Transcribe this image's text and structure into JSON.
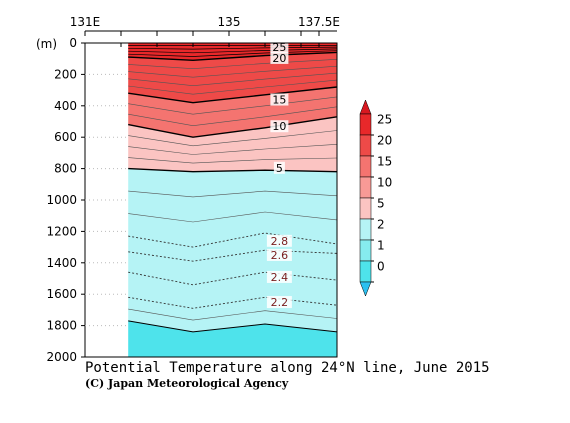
{
  "chart_data": {
    "type": "heatmap",
    "title": "Potential Temperature along 24°N line, June 2015",
    "credit": "(C) Japan Meteorological Agency",
    "ylabel": "(m)",
    "x_tick_labels": [
      "131E",
      "135",
      "137.5E"
    ],
    "x_ticks": [
      131,
      132,
      133,
      134,
      135,
      136,
      137,
      137.5
    ],
    "xlim": [
      131,
      138
    ],
    "data_x_range": [
      132.2,
      138
    ],
    "y_ticks": [
      0,
      200,
      400,
      600,
      800,
      1000,
      1200,
      1400,
      1600,
      1800,
      2000
    ],
    "ylim": [
      0,
      2000
    ],
    "sections": [
      {
        "x": 132.2,
        "depths": {
          "25": 15,
          "20": 90,
          "15": 320,
          "10": 520,
          "5": 800,
          "2.8": 1230,
          "2.6": 1330,
          "2.4": 1460,
          "2.2": 1620,
          "2": 1770
        }
      },
      {
        "x": 134.0,
        "depths": {
          "25": 15,
          "20": 110,
          "15": 380,
          "10": 600,
          "5": 820,
          "2.8": 1300,
          "2.6": 1390,
          "2.4": 1540,
          "2.2": 1690,
          "2": 1840
        }
      },
      {
        "x": 136.0,
        "depths": {
          "25": 15,
          "20": 80,
          "15": 330,
          "10": 540,
          "5": 810,
          "2.8": 1210,
          "2.6": 1320,
          "2.4": 1460,
          "2.2": 1620,
          "2": 1790
        }
      },
      {
        "x": 138.0,
        "depths": {
          "25": 15,
          "20": 60,
          "15": 280,
          "10": 470,
          "5": 820,
          "2.8": 1280,
          "2.6": 1340,
          "2.4": 1510,
          "2.2": 1670,
          "2": 1840
        }
      }
    ],
    "contour_labels": [
      {
        "text": "25",
        "x": 136.4,
        "depth": 25
      },
      {
        "text": "20",
        "x": 136.4,
        "depth": 95
      },
      {
        "text": "15",
        "x": 136.4,
        "depth": 360
      },
      {
        "text": "10",
        "x": 136.4,
        "depth": 530
      },
      {
        "text": "5",
        "x": 136.4,
        "depth": 795
      },
      {
        "text": "2.8",
        "x": 136.4,
        "depth": 1260
      },
      {
        "text": "2.6",
        "x": 136.4,
        "depth": 1350
      },
      {
        "text": "2.4",
        "x": 136.4,
        "depth": 1490
      },
      {
        "text": "2.2",
        "x": 136.4,
        "depth": 1650
      }
    ],
    "colorbar": {
      "labels": [
        "25",
        "20",
        "15",
        "10",
        "5",
        "2",
        "1",
        "0"
      ],
      "colors": [
        "#e8282a",
        "#ee4a48",
        "#f47470",
        "#f89a96",
        "#fbc4c2",
        "#b5f3f5",
        "#86ecef",
        "#4ee3eb"
      ],
      "cap_top": "#d81820",
      "cap_bottom": "#2cc0f0"
    },
    "band_colors": {
      "above_20": "#e8282a",
      "15_20": "#ee4a48",
      "10_15": "#f47470",
      "5_10": "#fbc4c2",
      "2_5": "#b5f3f5",
      "below_2": "#4ee3eb"
    }
  }
}
